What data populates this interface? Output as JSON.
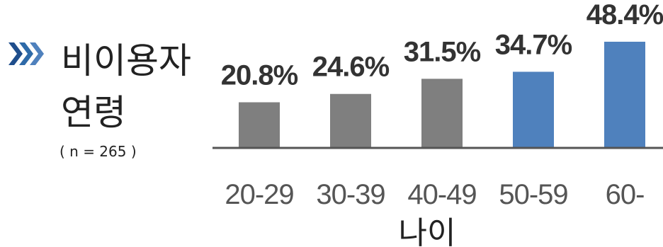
{
  "title": {
    "line1": "비이용자",
    "line2": "연령",
    "sample": "( n = 265 )",
    "chevron_icon": "triple-chevron-right-icon"
  },
  "colors": {
    "gray_bar": "#7f7f7f",
    "blue_bar": "#4f81bd",
    "axis": "#555555",
    "chevron": "#2e6aa8"
  },
  "chart_data": {
    "type": "bar",
    "categories": [
      "20-29",
      "30-39",
      "40-49",
      "50-59",
      "60-"
    ],
    "values": [
      20.8,
      24.6,
      31.5,
      34.7,
      48.4
    ],
    "value_labels": [
      "20.8%",
      "24.6%",
      "31.5%",
      "34.7%",
      "48.4%"
    ],
    "highlight": [
      false,
      false,
      false,
      true,
      true
    ],
    "xlabel": "나이",
    "ylabel": "",
    "ylim": [
      0,
      50
    ],
    "grid": false,
    "legend": "none"
  }
}
